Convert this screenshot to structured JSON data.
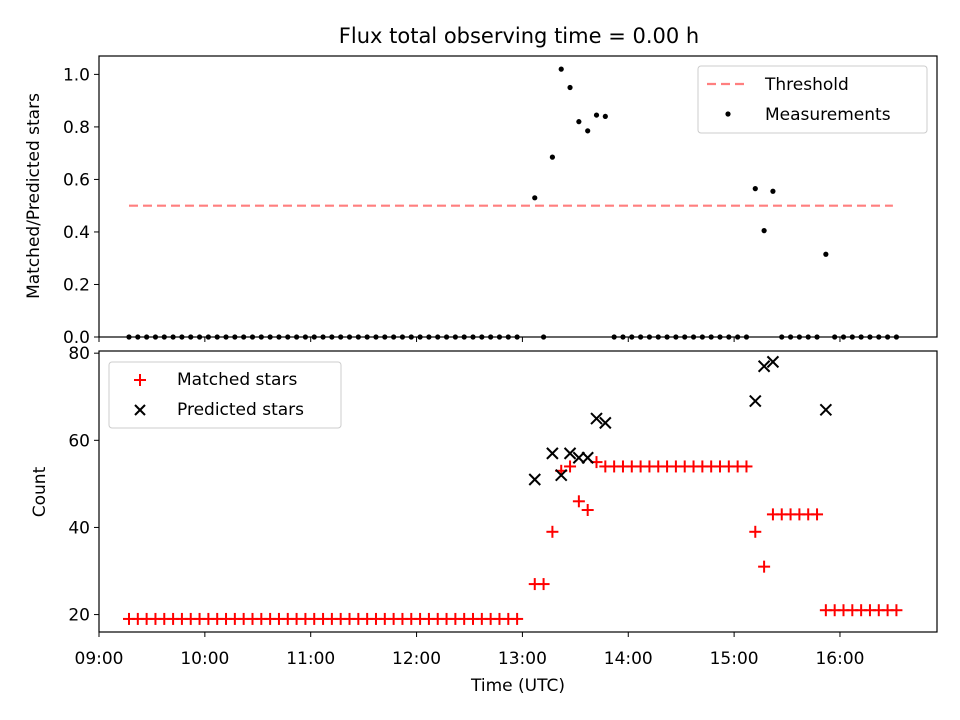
{
  "chart_data": [
    {
      "type": "scatter",
      "title": "Flux total observing time = 0.00 h",
      "xlabel": "",
      "ylabel": "Matched/Predicted stars",
      "xlim": [
        "09:00",
        "16:55"
      ],
      "ylim": [
        0,
        1.07
      ],
      "yticks": [
        "0.0",
        "0.2",
        "0.4",
        "0.6",
        "0.8",
        "1.0"
      ],
      "legend_position": "top-right",
      "grid": false,
      "threshold": {
        "name": "Threshold",
        "value": 0.5,
        "x_start": "09:17",
        "x_end": "16:30",
        "color": "#ff7f7f",
        "style": "dashed"
      },
      "series": [
        {
          "name": "Measurements",
          "marker": "dot",
          "color": "#000000",
          "points": [
            [
              "09:17",
              0
            ],
            [
              "09:22",
              0
            ],
            [
              "09:27",
              0
            ],
            [
              "09:32",
              0
            ],
            [
              "09:37",
              0
            ],
            [
              "09:42",
              0
            ],
            [
              "09:47",
              0
            ],
            [
              "09:52",
              0
            ],
            [
              "09:57",
              0
            ],
            [
              "10:02",
              0
            ],
            [
              "10:07",
              0
            ],
            [
              "10:12",
              0
            ],
            [
              "10:17",
              0
            ],
            [
              "10:22",
              0
            ],
            [
              "10:27",
              0
            ],
            [
              "10:32",
              0
            ],
            [
              "10:37",
              0
            ],
            [
              "10:42",
              0
            ],
            [
              "10:47",
              0
            ],
            [
              "10:52",
              0
            ],
            [
              "10:57",
              0
            ],
            [
              "11:02",
              0
            ],
            [
              "11:07",
              0
            ],
            [
              "11:12",
              0
            ],
            [
              "11:17",
              0
            ],
            [
              "11:22",
              0
            ],
            [
              "11:27",
              0
            ],
            [
              "11:32",
              0
            ],
            [
              "11:37",
              0
            ],
            [
              "11:42",
              0
            ],
            [
              "11:47",
              0
            ],
            [
              "11:52",
              0
            ],
            [
              "11:57",
              0
            ],
            [
              "12:02",
              0
            ],
            [
              "12:07",
              0
            ],
            [
              "12:12",
              0
            ],
            [
              "12:17",
              0
            ],
            [
              "12:22",
              0
            ],
            [
              "12:27",
              0
            ],
            [
              "12:32",
              0
            ],
            [
              "12:37",
              0
            ],
            [
              "12:42",
              0
            ],
            [
              "12:47",
              0
            ],
            [
              "12:52",
              0
            ],
            [
              "12:57",
              0
            ],
            [
              "13:07",
              0.53
            ],
            [
              "13:12",
              0
            ],
            [
              "13:17",
              0.685
            ],
            [
              "13:22",
              1.02
            ],
            [
              "13:27",
              0.95
            ],
            [
              "13:32",
              0.82
            ],
            [
              "13:37",
              0.785
            ],
            [
              "13:42",
              0.845
            ],
            [
              "13:47",
              0.84
            ],
            [
              "13:52",
              0
            ],
            [
              "13:57",
              0
            ],
            [
              "14:02",
              0
            ],
            [
              "14:07",
              0
            ],
            [
              "14:12",
              0
            ],
            [
              "14:17",
              0
            ],
            [
              "14:22",
              0
            ],
            [
              "14:27",
              0
            ],
            [
              "14:32",
              0
            ],
            [
              "14:37",
              0
            ],
            [
              "14:42",
              0
            ],
            [
              "14:47",
              0
            ],
            [
              "14:52",
              0
            ],
            [
              "14:57",
              0
            ],
            [
              "15:02",
              0
            ],
            [
              "15:07",
              0
            ],
            [
              "15:12",
              0.565
            ],
            [
              "15:17",
              0.405
            ],
            [
              "15:22",
              0.555
            ],
            [
              "15:27",
              0
            ],
            [
              "15:32",
              0
            ],
            [
              "15:37",
              0
            ],
            [
              "15:42",
              0
            ],
            [
              "15:47",
              0
            ],
            [
              "15:52",
              0.315
            ],
            [
              "15:57",
              0
            ],
            [
              "16:02",
              0
            ],
            [
              "16:07",
              0
            ],
            [
              "16:12",
              0
            ],
            [
              "16:17",
              0
            ],
            [
              "16:22",
              0
            ],
            [
              "16:27",
              0
            ],
            [
              "16:32",
              0
            ]
          ]
        }
      ]
    },
    {
      "type": "scatter",
      "title": "",
      "xlabel": "Time (UTC)",
      "ylabel": "Count",
      "xlim": [
        "09:00",
        "16:55"
      ],
      "ylim": [
        16,
        80.5
      ],
      "yticks": [
        "20",
        "40",
        "60",
        "80"
      ],
      "xticks": [
        "09:00",
        "10:00",
        "11:00",
        "12:00",
        "13:00",
        "14:00",
        "15:00",
        "16:00"
      ],
      "legend_position": "top-left",
      "grid": false,
      "series": [
        {
          "name": "Matched stars",
          "marker": "plus",
          "color": "#ff0000",
          "points": [
            [
              "09:17",
              19
            ],
            [
              "09:22",
              19
            ],
            [
              "09:27",
              19
            ],
            [
              "09:32",
              19
            ],
            [
              "09:37",
              19
            ],
            [
              "09:42",
              19
            ],
            [
              "09:47",
              19
            ],
            [
              "09:52",
              19
            ],
            [
              "09:57",
              19
            ],
            [
              "10:02",
              19
            ],
            [
              "10:07",
              19
            ],
            [
              "10:12",
              19
            ],
            [
              "10:17",
              19
            ],
            [
              "10:22",
              19
            ],
            [
              "10:27",
              19
            ],
            [
              "10:32",
              19
            ],
            [
              "10:37",
              19
            ],
            [
              "10:42",
              19
            ],
            [
              "10:47",
              19
            ],
            [
              "10:52",
              19
            ],
            [
              "10:57",
              19
            ],
            [
              "11:02",
              19
            ],
            [
              "11:07",
              19
            ],
            [
              "11:12",
              19
            ],
            [
              "11:17",
              19
            ],
            [
              "11:22",
              19
            ],
            [
              "11:27",
              19
            ],
            [
              "11:32",
              19
            ],
            [
              "11:37",
              19
            ],
            [
              "11:42",
              19
            ],
            [
              "11:47",
              19
            ],
            [
              "11:52",
              19
            ],
            [
              "11:57",
              19
            ],
            [
              "12:02",
              19
            ],
            [
              "12:07",
              19
            ],
            [
              "12:12",
              19
            ],
            [
              "12:17",
              19
            ],
            [
              "12:22",
              19
            ],
            [
              "12:27",
              19
            ],
            [
              "12:32",
              19
            ],
            [
              "12:37",
              19
            ],
            [
              "12:42",
              19
            ],
            [
              "12:47",
              19
            ],
            [
              "12:52",
              19
            ],
            [
              "12:57",
              19
            ],
            [
              "13:07",
              27
            ],
            [
              "13:12",
              27
            ],
            [
              "13:17",
              39
            ],
            [
              "13:22",
              53
            ],
            [
              "13:27",
              54
            ],
            [
              "13:32",
              46
            ],
            [
              "13:37",
              44
            ],
            [
              "13:42",
              55
            ],
            [
              "13:47",
              54
            ],
            [
              "13:52",
              54
            ],
            [
              "13:57",
              54
            ],
            [
              "14:02",
              54
            ],
            [
              "14:07",
              54
            ],
            [
              "14:12",
              54
            ],
            [
              "14:17",
              54
            ],
            [
              "14:22",
              54
            ],
            [
              "14:27",
              54
            ],
            [
              "14:32",
              54
            ],
            [
              "14:37",
              54
            ],
            [
              "14:42",
              54
            ],
            [
              "14:47",
              54
            ],
            [
              "14:52",
              54
            ],
            [
              "14:57",
              54
            ],
            [
              "15:02",
              54
            ],
            [
              "15:07",
              54
            ],
            [
              "15:12",
              39
            ],
            [
              "15:17",
              31
            ],
            [
              "15:22",
              43
            ],
            [
              "15:27",
              43
            ],
            [
              "15:32",
              43
            ],
            [
              "15:37",
              43
            ],
            [
              "15:42",
              43
            ],
            [
              "15:47",
              43
            ],
            [
              "15:52",
              21
            ],
            [
              "15:57",
              21
            ],
            [
              "16:02",
              21
            ],
            [
              "16:07",
              21
            ],
            [
              "16:12",
              21
            ],
            [
              "16:17",
              21
            ],
            [
              "16:22",
              21
            ],
            [
              "16:27",
              21
            ],
            [
              "16:32",
              21
            ]
          ]
        },
        {
          "name": "Predicted stars",
          "marker": "x",
          "color": "#000000",
          "points": [
            [
              "13:07",
              51
            ],
            [
              "13:17",
              57
            ],
            [
              "13:22",
              52
            ],
            [
              "13:27",
              57
            ],
            [
              "13:32",
              56
            ],
            [
              "13:37",
              56
            ],
            [
              "13:42",
              65
            ],
            [
              "13:47",
              64
            ],
            [
              "15:12",
              69
            ],
            [
              "15:17",
              77
            ],
            [
              "15:22",
              78
            ],
            [
              "15:52",
              67
            ]
          ]
        }
      ]
    }
  ]
}
